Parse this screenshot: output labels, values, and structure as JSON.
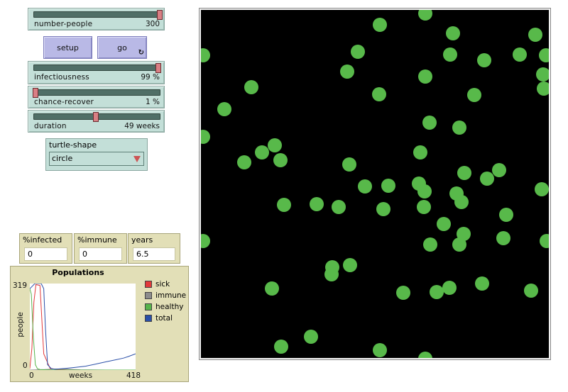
{
  "sliders": [
    {
      "name": "number-people",
      "label": "number-people",
      "value": "300",
      "fraction": 1.0
    },
    {
      "name": "infectiousness",
      "label": "infectiousness",
      "value": "99 %",
      "fraction": 0.99
    },
    {
      "name": "chance-recover",
      "label": "chance-recover",
      "value": "1 %",
      "fraction": 0.01
    },
    {
      "name": "duration",
      "label": "duration",
      "value": "49 weeks",
      "fraction": 0.49
    }
  ],
  "buttons": {
    "setup": "setup",
    "go": "go"
  },
  "chooser": {
    "label": "turtle-shape",
    "value": "circle"
  },
  "monitors": [
    {
      "label": "%infected",
      "value": "0"
    },
    {
      "label": "%immune",
      "value": "0"
    },
    {
      "label": "years",
      "value": "6.5"
    }
  ],
  "plot": {
    "title": "Populations",
    "ylabel": "people",
    "xlabel": "weeks",
    "ymax_label": "319",
    "ymin_label": "0",
    "xmin_label": "0",
    "xmax_label": "418",
    "legend": [
      {
        "label": "sick",
        "color": "#e23a3a"
      },
      {
        "label": "immune",
        "color": "#8c8c8c"
      },
      {
        "label": "healthy",
        "color": "#56b44a"
      },
      {
        "label": "total",
        "color": "#2a4fa8"
      }
    ]
  },
  "chart_data": {
    "type": "line",
    "title": "Populations",
    "xlabel": "weeks",
    "ylabel": "people",
    "xlim": [
      0,
      418
    ],
    "ylim": [
      0,
      319
    ],
    "series": [
      {
        "name": "sick",
        "color": "#e23a3a",
        "x": [
          0,
          8,
          16,
          24,
          40,
          55,
          80,
          110,
          150,
          200,
          300,
          418
        ],
        "y": [
          5,
          80,
          250,
          315,
          312,
          60,
          6,
          2,
          1,
          0,
          0,
          0
        ]
      },
      {
        "name": "immune",
        "color": "#8c8c8c",
        "x": [
          0,
          60,
          100,
          150,
          200,
          300,
          418
        ],
        "y": [
          0,
          2,
          4,
          3,
          1,
          0,
          0
        ]
      },
      {
        "name": "healthy",
        "color": "#56b44a",
        "x": [
          0,
          6,
          14,
          22,
          30,
          40,
          60,
          100,
          150,
          418
        ],
        "y": [
          300,
          280,
          120,
          20,
          5,
          2,
          1,
          0,
          0,
          0
        ]
      },
      {
        "name": "total",
        "color": "#2a4fa8",
        "x": [
          0,
          20,
          45,
          55,
          62,
          70,
          85,
          100,
          140,
          180,
          220,
          260,
          300,
          340,
          370,
          390,
          418
        ],
        "y": [
          300,
          319,
          319,
          300,
          150,
          20,
          5,
          3,
          6,
          10,
          14,
          22,
          30,
          38,
          44,
          50,
          60
        ]
      }
    ]
  },
  "view": {
    "background": "#000000",
    "turtle_color": "#58b94a",
    "turtles": [
      [
        316,
        5
      ],
      [
        252,
        21
      ],
      [
        355,
        33
      ],
      [
        471,
        35
      ],
      [
        3,
        64
      ],
      [
        221,
        59
      ],
      [
        351,
        63
      ],
      [
        399,
        71
      ],
      [
        449,
        63
      ],
      [
        486,
        64
      ],
      [
        206,
        87
      ],
      [
        316,
        94
      ],
      [
        482,
        91
      ],
      [
        71,
        109
      ],
      [
        251,
        119
      ],
      [
        385,
        120
      ],
      [
        483,
        111
      ],
      [
        33,
        140
      ],
      [
        322,
        159
      ],
      [
        364,
        166
      ],
      [
        3,
        179
      ],
      [
        104,
        191
      ],
      [
        86,
        201
      ],
      [
        112,
        212
      ],
      [
        61,
        215
      ],
      [
        209,
        218
      ],
      [
        309,
        201
      ],
      [
        371,
        230
      ],
      [
        403,
        238
      ],
      [
        420,
        226
      ],
      [
        231,
        249
      ],
      [
        264,
        248
      ],
      [
        307,
        245
      ],
      [
        315,
        256
      ],
      [
        480,
        253
      ],
      [
        117,
        275
      ],
      [
        163,
        274
      ],
      [
        194,
        278
      ],
      [
        257,
        281
      ],
      [
        314,
        278
      ],
      [
        360,
        259
      ],
      [
        367,
        271
      ],
      [
        430,
        289
      ],
      [
        342,
        302
      ],
      [
        370,
        316
      ],
      [
        3,
        326
      ],
      [
        323,
        331
      ],
      [
        364,
        331
      ],
      [
        426,
        322
      ],
      [
        487,
        326
      ],
      [
        185,
        363
      ],
      [
        210,
        360
      ],
      [
        184,
        373
      ],
      [
        100,
        393
      ],
      [
        285,
        399
      ],
      [
        332,
        398
      ],
      [
        350,
        392
      ],
      [
        396,
        386
      ],
      [
        465,
        396
      ],
      [
        155,
        461
      ],
      [
        113,
        475
      ],
      [
        252,
        480
      ],
      [
        316,
        492
      ]
    ]
  }
}
